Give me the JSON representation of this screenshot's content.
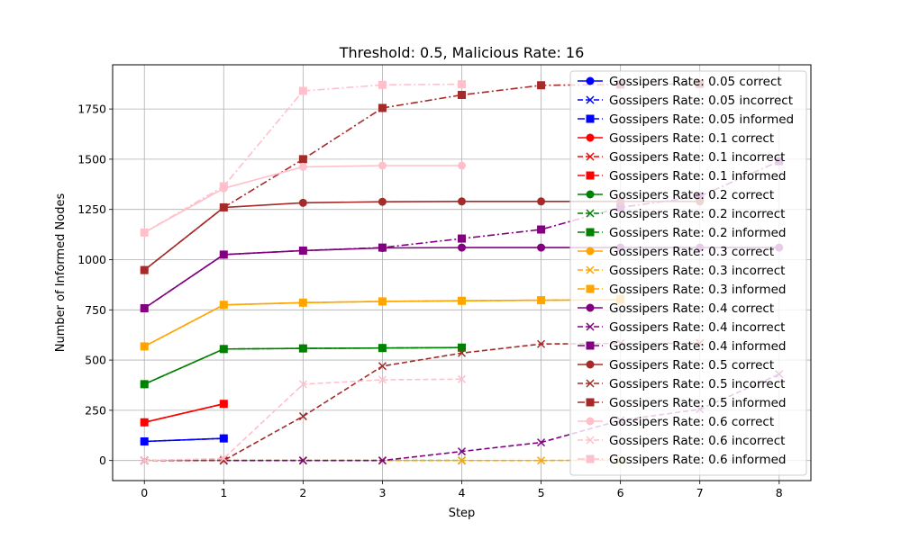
{
  "chart_data": {
    "type": "line",
    "title": "Threshold: 0.5, Malicious Rate: 16",
    "xlabel": "Step",
    "ylabel": "Number of Informed Nodes",
    "xlim": [
      -0.4,
      8.4
    ],
    "ylim": [
      -100,
      1970
    ],
    "xticks": [
      0,
      1,
      2,
      3,
      4,
      5,
      6,
      7,
      8
    ],
    "yticks": [
      0,
      250,
      500,
      750,
      1000,
      1250,
      1500,
      1750
    ],
    "grid": true,
    "legend_position": "top-right",
    "series": [
      {
        "name": "Gossipers Rate: 0.05 correct",
        "color": "#0000ff",
        "marker": "circle",
        "dash": "solid",
        "x": [
          0,
          1
        ],
        "y": [
          95,
          110
        ]
      },
      {
        "name": "Gossipers Rate: 0.05 incorrect",
        "color": "#0000ff",
        "marker": "x",
        "dash": "dashed",
        "x": [
          0,
          1
        ],
        "y": [
          0,
          0
        ]
      },
      {
        "name": "Gossipers Rate: 0.05 informed",
        "color": "#0000ff",
        "marker": "square",
        "dash": "dashdot",
        "x": [
          0,
          1
        ],
        "y": [
          95,
          110
        ]
      },
      {
        "name": "Gossipers Rate: 0.1 correct",
        "color": "#ff0000",
        "marker": "circle",
        "dash": "solid",
        "x": [
          0,
          1
        ],
        "y": [
          190,
          282
        ]
      },
      {
        "name": "Gossipers Rate: 0.1 incorrect",
        "color": "#ff0000",
        "marker": "x",
        "dash": "dashed",
        "x": [
          0,
          1
        ],
        "y": [
          0,
          0
        ]
      },
      {
        "name": "Gossipers Rate: 0.1 informed",
        "color": "#ff0000",
        "marker": "square",
        "dash": "dashdot",
        "x": [
          0,
          1
        ],
        "y": [
          190,
          282
        ]
      },
      {
        "name": "Gossipers Rate: 0.2 correct",
        "color": "#008000",
        "marker": "circle",
        "dash": "solid",
        "x": [
          0,
          1,
          2,
          3,
          4
        ],
        "y": [
          380,
          555,
          558,
          560,
          562
        ]
      },
      {
        "name": "Gossipers Rate: 0.2 incorrect",
        "color": "#008000",
        "marker": "x",
        "dash": "dashed",
        "x": [
          0,
          1,
          2,
          3,
          4
        ],
        "y": [
          0,
          0,
          0,
          0,
          0
        ]
      },
      {
        "name": "Gossipers Rate: 0.2 informed",
        "color": "#008000",
        "marker": "square",
        "dash": "dashdot",
        "x": [
          0,
          1,
          2,
          3,
          4
        ],
        "y": [
          380,
          555,
          558,
          560,
          562
        ]
      },
      {
        "name": "Gossipers Rate: 0.3 correct",
        "color": "#ffa500",
        "marker": "circle",
        "dash": "solid",
        "x": [
          0,
          1,
          2,
          3,
          4,
          5,
          6
        ],
        "y": [
          568,
          775,
          786,
          792,
          795,
          798,
          800
        ]
      },
      {
        "name": "Gossipers Rate: 0.3 incorrect",
        "color": "#ffa500",
        "marker": "x",
        "dash": "dashed",
        "x": [
          0,
          1,
          2,
          3,
          4,
          5,
          6
        ],
        "y": [
          0,
          0,
          0,
          0,
          0,
          0,
          2
        ]
      },
      {
        "name": "Gossipers Rate: 0.3 informed",
        "color": "#ffa500",
        "marker": "square",
        "dash": "dashdot",
        "x": [
          0,
          1,
          2,
          3,
          4,
          5,
          6
        ],
        "y": [
          568,
          775,
          786,
          792,
          795,
          798,
          802
        ]
      },
      {
        "name": "Gossipers Rate: 0.4 correct",
        "color": "#800080",
        "marker": "circle",
        "dash": "solid",
        "x": [
          0,
          1,
          2,
          3,
          4,
          5,
          6,
          7,
          8
        ],
        "y": [
          758,
          1025,
          1045,
          1058,
          1060,
          1060,
          1060,
          1060,
          1060
        ]
      },
      {
        "name": "Gossipers Rate: 0.4 incorrect",
        "color": "#800080",
        "marker": "x",
        "dash": "dashed",
        "x": [
          0,
          1,
          2,
          3,
          4,
          5,
          6,
          7,
          8
        ],
        "y": [
          0,
          0,
          0,
          0,
          45,
          90,
          200,
          255,
          430
        ]
      },
      {
        "name": "Gossipers Rate: 0.4 informed",
        "color": "#800080",
        "marker": "square",
        "dash": "dashdot",
        "x": [
          0,
          1,
          2,
          3,
          4,
          5,
          6,
          7,
          8
        ],
        "y": [
          758,
          1025,
          1045,
          1060,
          1105,
          1150,
          1260,
          1315,
          1490
        ]
      },
      {
        "name": "Gossipers Rate: 0.5 correct",
        "color": "#a52a2a",
        "marker": "circle",
        "dash": "solid",
        "x": [
          0,
          1,
          2,
          3,
          4,
          5,
          6,
          7
        ],
        "y": [
          948,
          1260,
          1283,
          1288,
          1290,
          1290,
          1290,
          1290
        ]
      },
      {
        "name": "Gossipers Rate: 0.5 incorrect",
        "color": "#a52a2a",
        "marker": "x",
        "dash": "dashed",
        "x": [
          0,
          1,
          2,
          3,
          4,
          5,
          6,
          7
        ],
        "y": [
          0,
          0,
          220,
          470,
          535,
          580,
          583,
          584
        ]
      },
      {
        "name": "Gossipers Rate: 0.5 informed",
        "color": "#a52a2a",
        "marker": "square",
        "dash": "dashdot",
        "x": [
          0,
          1,
          2,
          3,
          4,
          5,
          6,
          7
        ],
        "y": [
          948,
          1260,
          1500,
          1755,
          1820,
          1868,
          1872,
          1875
        ]
      },
      {
        "name": "Gossipers Rate: 0.6 correct",
        "color": "#ffc0cb",
        "marker": "circle",
        "dash": "solid",
        "x": [
          0,
          1,
          2,
          3,
          4
        ],
        "y": [
          1135,
          1355,
          1462,
          1468,
          1468
        ]
      },
      {
        "name": "Gossipers Rate: 0.6 incorrect",
        "color": "#ffc0cb",
        "marker": "x",
        "dash": "dashed",
        "x": [
          0,
          1,
          2,
          3,
          4
        ],
        "y": [
          0,
          10,
          380,
          402,
          405
        ]
      },
      {
        "name": "Gossipers Rate: 0.6 informed",
        "color": "#ffc0cb",
        "marker": "square",
        "dash": "dashdot",
        "x": [
          0,
          1,
          2,
          3,
          4
        ],
        "y": [
          1135,
          1365,
          1840,
          1870,
          1873
        ]
      }
    ]
  }
}
